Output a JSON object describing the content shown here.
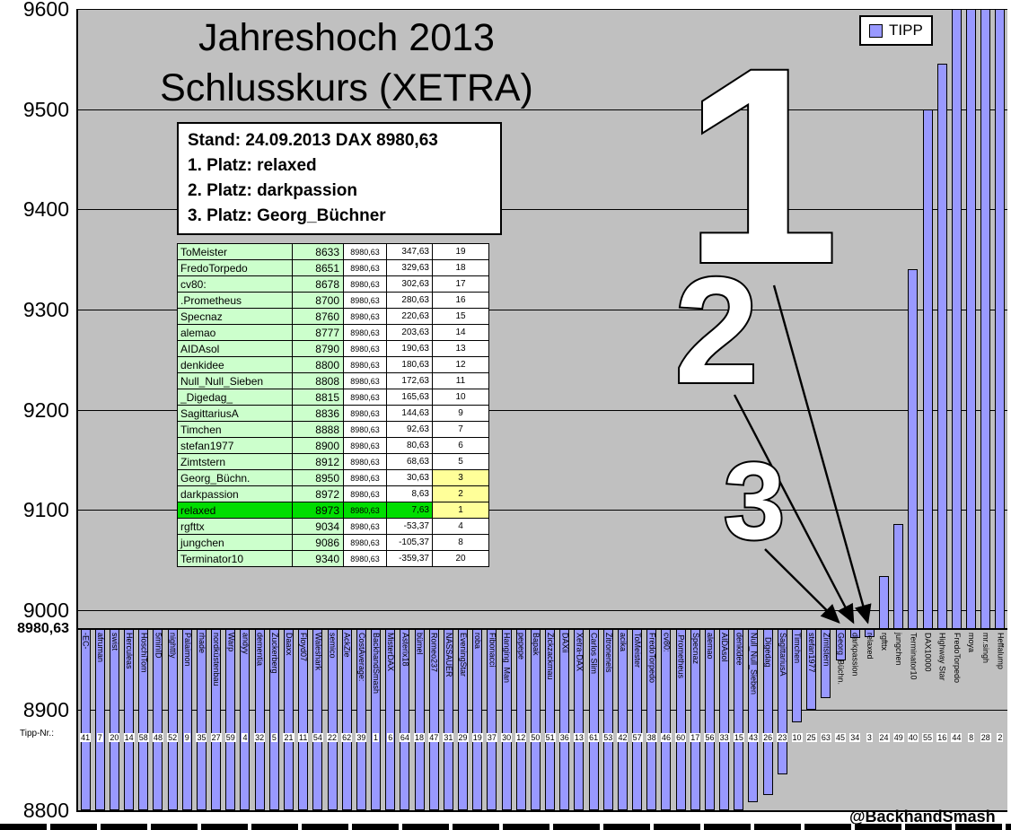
{
  "title": {
    "line1": "Jahreshoch 2013",
    "line2": "Schlusskurs (XETRA)"
  },
  "legend": {
    "label": "TIPP",
    "color": "#9999ff"
  },
  "info_box": {
    "lines": [
      "Stand: 24.09.2013 DAX 8980,63",
      "1. Platz: relaxed",
      "2. Platz: darkpassion",
      "3. Platz: Georg_Büchner"
    ]
  },
  "watermark": "@BackhandSmash",
  "callouts": [
    {
      "label": "1",
      "points_to": "relaxed"
    },
    {
      "label": "2",
      "points_to": "darkpassion"
    },
    {
      "label": "3",
      "points_to": "Georg_Büchn."
    }
  ],
  "colors": {
    "bar_fill": "#9999ff",
    "plot_background": "#c0c0c0",
    "table_green": "#ccffcc",
    "winner_green": "#00dd00",
    "rank_yellow": "#ffff99"
  },
  "ranking_table": {
    "rows": [
      {
        "name": "ToMeister",
        "tipp": "8633",
        "dax": "8980,63",
        "diff": "347,63",
        "rank": "19",
        "highlight": null
      },
      {
        "name": "FredoTorpedo",
        "tipp": "8651",
        "dax": "8980,63",
        "diff": "329,63",
        "rank": "18",
        "highlight": null
      },
      {
        "name": "cv80:",
        "tipp": "8678",
        "dax": "8980,63",
        "diff": "302,63",
        "rank": "17",
        "highlight": null
      },
      {
        "name": ".Prometheus",
        "tipp": "8700",
        "dax": "8980,63",
        "diff": "280,63",
        "rank": "16",
        "highlight": null
      },
      {
        "name": "Specnaz",
        "tipp": "8760",
        "dax": "8980,63",
        "diff": "220,63",
        "rank": "15",
        "highlight": null
      },
      {
        "name": "alemao",
        "tipp": "8777",
        "dax": "8980,63",
        "diff": "203,63",
        "rank": "14",
        "highlight": null
      },
      {
        "name": "AIDAsol",
        "tipp": "8790",
        "dax": "8980,63",
        "diff": "190,63",
        "rank": "13",
        "highlight": null
      },
      {
        "name": "denkidee",
        "tipp": "8800",
        "dax": "8980,63",
        "diff": "180,63",
        "rank": "12",
        "highlight": null
      },
      {
        "name": "Null_Null_Sieben",
        "tipp": "8808",
        "dax": "8980,63",
        "diff": "172,63",
        "rank": "11",
        "highlight": null
      },
      {
        "name": "_Digedag_",
        "tipp": "8815",
        "dax": "8980,63",
        "diff": "165,63",
        "rank": "10",
        "highlight": null
      },
      {
        "name": "SagittariusA",
        "tipp": "8836",
        "dax": "8980,63",
        "diff": "144,63",
        "rank": "9",
        "highlight": null
      },
      {
        "name": "Timchen",
        "tipp": "8888",
        "dax": "8980,63",
        "diff": "92,63",
        "rank": "7",
        "highlight": null
      },
      {
        "name": "stefan1977",
        "tipp": "8900",
        "dax": "8980,63",
        "diff": "80,63",
        "rank": "6",
        "highlight": null
      },
      {
        "name": "Zimtstern",
        "tipp": "8912",
        "dax": "8980,63",
        "diff": "68,63",
        "rank": "5",
        "highlight": null
      },
      {
        "name": "Georg_Büchn.",
        "tipp": "8950",
        "dax": "8980,63",
        "diff": "30,63",
        "rank": "3",
        "highlight": "rank"
      },
      {
        "name": "darkpassion",
        "tipp": "8972",
        "dax": "8980,63",
        "diff": "8,63",
        "rank": "2",
        "highlight": "rank"
      },
      {
        "name": "relaxed",
        "tipp": "8973",
        "dax": "8980,63",
        "diff": "7,63",
        "rank": "1",
        "highlight": "row"
      },
      {
        "name": "rgfttx",
        "tipp": "9034",
        "dax": "8980,63",
        "diff": "-53,37",
        "rank": "4",
        "highlight": null
      },
      {
        "name": "jungchen",
        "tipp": "9086",
        "dax": "8980,63",
        "diff": "-105,37",
        "rank": "8",
        "highlight": null
      },
      {
        "name": "Terminator10",
        "tipp": "9340",
        "dax": "8980,63",
        "diff": "-359,37",
        "rank": "20",
        "highlight": null
      }
    ]
  },
  "chart_data": {
    "type": "bar",
    "title": "Jahreshoch 2013 Schlusskurs (XETRA)",
    "series_name": "TIPP",
    "ylim": [
      8800,
      9600
    ],
    "grid": true,
    "legend_position": "top-right",
    "tipp_nr_label": "Tipp-Nr.:",
    "axis_cross": {
      "label": "8980,63",
      "value": 8980.63
    },
    "yticks": [
      {
        "label": "9600",
        "value": 9600
      },
      {
        "label": "9500",
        "value": 9500
      },
      {
        "label": "9400",
        "value": 9400
      },
      {
        "label": "9300",
        "value": 9300
      },
      {
        "label": "9200",
        "value": 9200
      },
      {
        "label": "9100",
        "value": 9100
      },
      {
        "label": "9000",
        "value": 9000
      },
      {
        "label": "8900",
        "value": 8900
      },
      {
        "label": "8800",
        "value": 8800
      }
    ],
    "bars": [
      {
        "name": "-EC-",
        "tipp_nr": "41",
        "value": null,
        "clip": "low"
      },
      {
        "name": "afruman",
        "tipp_nr": "7",
        "value": null,
        "clip": "low"
      },
      {
        "name": "swist",
        "tipp_nr": "20",
        "value": null,
        "clip": "low"
      },
      {
        "name": "Herculeas",
        "tipp_nr": "14",
        "value": null,
        "clip": "low"
      },
      {
        "name": "HoschiTom",
        "tipp_nr": "58",
        "value": null,
        "clip": "low"
      },
      {
        "name": "5minID",
        "tipp_nr": "48",
        "value": null,
        "clip": "low"
      },
      {
        "name": "nighttly",
        "tipp_nr": "52",
        "value": null,
        "clip": "low"
      },
      {
        "name": "Palaimon",
        "tipp_nr": "9",
        "value": null,
        "clip": "low"
      },
      {
        "name": "rhade",
        "tipp_nr": "35",
        "value": null,
        "clip": "low"
      },
      {
        "name": "nordküstenbau",
        "tipp_nr": "27",
        "value": null,
        "clip": "low"
      },
      {
        "name": "Warp",
        "tipp_nr": "59",
        "value": null,
        "clip": "low"
      },
      {
        "name": "andyy",
        "tipp_nr": "4",
        "value": null,
        "clip": "low"
      },
      {
        "name": "dementia",
        "tipp_nr": "32",
        "value": null,
        "clip": "low"
      },
      {
        "name": "Zuckerberg",
        "tipp_nr": "5",
        "value": null,
        "clip": "low"
      },
      {
        "name": "Daaxx",
        "tipp_nr": "21",
        "value": null,
        "clip": "low"
      },
      {
        "name": "Floyd07",
        "tipp_nr": "11",
        "value": null,
        "clip": "low"
      },
      {
        "name": "Waleshark",
        "tipp_nr": "54",
        "value": null,
        "clip": "low"
      },
      {
        "name": "semico",
        "tipp_nr": "22",
        "value": null,
        "clip": "low"
      },
      {
        "name": "AckZie",
        "tipp_nr": "62",
        "value": null,
        "clip": "low"
      },
      {
        "name": "CostAverage:",
        "tipp_nr": "39",
        "value": null,
        "clip": "low"
      },
      {
        "name": "BackhandSmash",
        "tipp_nr": "1",
        "value": null,
        "clip": "low"
      },
      {
        "name": "MisterDAX",
        "tipp_nr": "6",
        "value": null,
        "clip": "low"
      },
      {
        "name": "Asterix18",
        "tipp_nr": "64",
        "value": null,
        "clip": "low"
      },
      {
        "name": "bümel",
        "tipp_nr": "18",
        "value": null,
        "clip": "low"
      },
      {
        "name": "Romeo237",
        "tipp_nr": "47",
        "value": null,
        "clip": "low"
      },
      {
        "name": "NASSAUER",
        "tipp_nr": "31",
        "value": null,
        "clip": "low"
      },
      {
        "name": "EveningStar",
        "tipp_nr": "29",
        "value": null,
        "clip": "low"
      },
      {
        "name": "roba",
        "tipp_nr": "19",
        "value": null,
        "clip": "low"
      },
      {
        "name": "Fibonacci",
        "tipp_nr": "37",
        "value": null,
        "clip": "low"
      },
      {
        "name": "Hanging_Man",
        "tipp_nr": "30",
        "value": null,
        "clip": "low"
      },
      {
        "name": "pepepe",
        "tipp_nr": "12",
        "value": null,
        "clip": "low"
      },
      {
        "name": "Bapak",
        "tipp_nr": "50",
        "value": null,
        "clip": "low"
      },
      {
        "name": "Zickzackmau",
        "tipp_nr": "51",
        "value": null,
        "clip": "low"
      },
      {
        "name": "DAXii",
        "tipp_nr": "36",
        "value": null,
        "clip": "low"
      },
      {
        "name": "Xetra-DAX",
        "tipp_nr": "13",
        "value": null,
        "clip": "low"
      },
      {
        "name": "Carlos Slim",
        "tipp_nr": "61",
        "value": null,
        "clip": "low"
      },
      {
        "name": "Zitronenels",
        "tipp_nr": "53",
        "value": null,
        "clip": "low"
      },
      {
        "name": "acika",
        "tipp_nr": "42",
        "value": null,
        "clip": "low"
      },
      {
        "name": "ToMeister",
        "tipp_nr": "57",
        "value": 8633,
        "clip": "low"
      },
      {
        "name": "FredoTorpedo",
        "tipp_nr": "38",
        "value": 8651,
        "clip": "low"
      },
      {
        "name": "cv80:",
        "tipp_nr": "46",
        "value": 8678,
        "clip": "low"
      },
      {
        "name": ".Prometheus",
        "tipp_nr": "60",
        "value": 8700,
        "clip": "low"
      },
      {
        "name": "Specnaz",
        "tipp_nr": "17",
        "value": 8760,
        "clip": "low"
      },
      {
        "name": "alemao",
        "tipp_nr": "56",
        "value": 8777,
        "clip": "low"
      },
      {
        "name": "AIDAsol",
        "tipp_nr": "33",
        "value": 8790,
        "clip": "low"
      },
      {
        "name": "denkidee",
        "tipp_nr": "15",
        "value": 8800,
        "clip": null
      },
      {
        "name": "Null_Null_Sieben",
        "tipp_nr": "43",
        "value": 8808,
        "clip": null
      },
      {
        "name": "_Digedag_",
        "tipp_nr": "26",
        "value": 8815,
        "clip": null
      },
      {
        "name": "SagittariusA",
        "tipp_nr": "23",
        "value": 8836,
        "clip": null
      },
      {
        "name": "Timchen",
        "tipp_nr": "10",
        "value": 8888,
        "clip": null
      },
      {
        "name": "stefan1977",
        "tipp_nr": "25",
        "value": 8900,
        "clip": null
      },
      {
        "name": "Zimtstern",
        "tipp_nr": "63",
        "value": 8912,
        "clip": null
      },
      {
        "name": "Georg_Büchn.",
        "tipp_nr": "45",
        "value": 8950,
        "clip": null
      },
      {
        "name": "darkpassion",
        "tipp_nr": "34",
        "value": 8972,
        "clip": null
      },
      {
        "name": "relaxed",
        "tipp_nr": "3",
        "value": 8973,
        "clip": null
      },
      {
        "name": "rgfttx",
        "tipp_nr": "24",
        "value": 9034,
        "clip": null
      },
      {
        "name": "jungchen",
        "tipp_nr": "49",
        "value": 9086,
        "clip": null
      },
      {
        "name": "Terminator10",
        "tipp_nr": "40",
        "value": 9340,
        "clip": null
      },
      {
        "name": "DAX10000",
        "tipp_nr": "55",
        "value": 9500,
        "clip": null
      },
      {
        "name": "Highway Star",
        "tipp_nr": "16",
        "value": 9545,
        "clip": null
      },
      {
        "name": "FredoTorpedo",
        "tipp_nr": "44",
        "value": null,
        "clip": "high"
      },
      {
        "name": "moya",
        "tipp_nr": "8",
        "value": null,
        "clip": "high"
      },
      {
        "name": "mr.singh",
        "tipp_nr": "28",
        "value": null,
        "clip": "high"
      },
      {
        "name": "Heffalump",
        "tipp_nr": "2",
        "value": null,
        "clip": "high"
      }
    ]
  }
}
